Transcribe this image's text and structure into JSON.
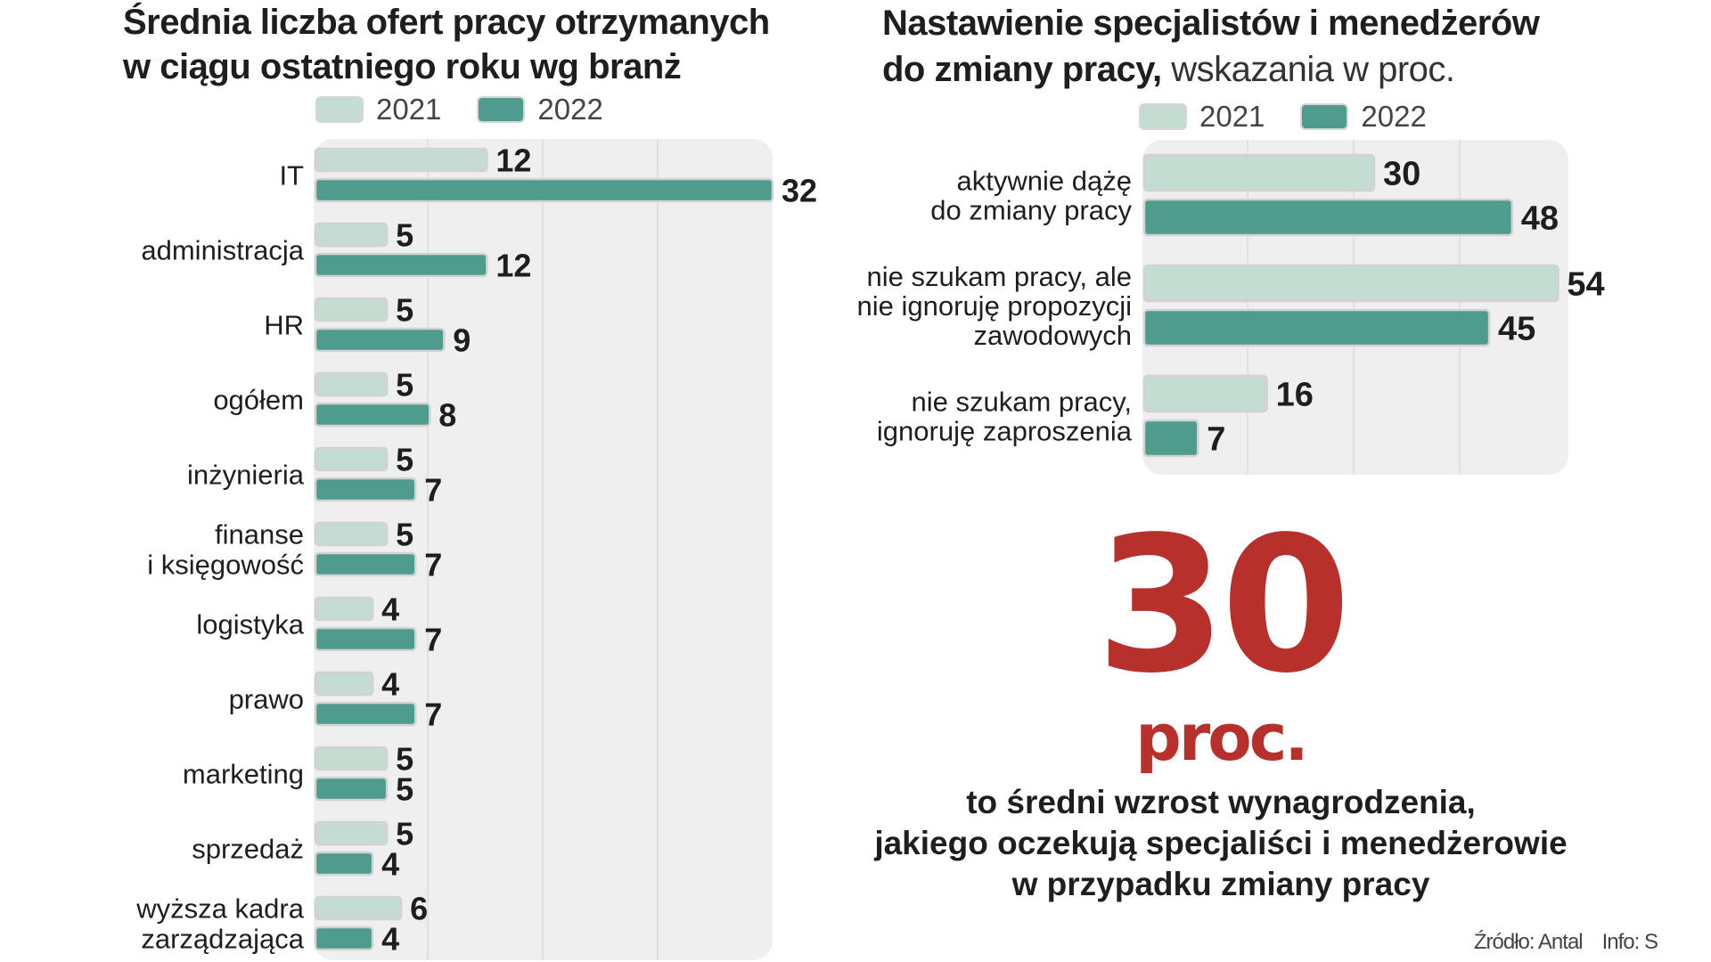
{
  "colors": {
    "y2021": "#c5dcd3",
    "y2022": "#4f9c8e",
    "panel": "#efefef",
    "accent": "#b8302b"
  },
  "chart_data": [
    {
      "type": "bar",
      "orientation": "horizontal",
      "title": "Średnia liczba ofert pracy otrzymanych w ciągu ostatniego roku wg branż",
      "title_lines": [
        "Średnia liczba ofert pracy otrzymanych",
        "w ciągu ostatniego roku wg branż"
      ],
      "categories": [
        [
          "IT"
        ],
        [
          "administracja"
        ],
        [
          "HR"
        ],
        [
          "ogółem"
        ],
        [
          "inżynieria"
        ],
        [
          "finanse",
          "i księgowość"
        ],
        [
          "logistyka"
        ],
        [
          "prawo"
        ],
        [
          "marketing"
        ],
        [
          "sprzedaż"
        ],
        [
          "wyższa kadra",
          "zarządzająca"
        ]
      ],
      "series": [
        {
          "name": "2021",
          "values": [
            12,
            5,
            5,
            5,
            5,
            5,
            4,
            4,
            5,
            5,
            6
          ]
        },
        {
          "name": "2022",
          "values": [
            32,
            12,
            9,
            8,
            7,
            7,
            7,
            7,
            5,
            4,
            4
          ]
        }
      ],
      "xlim": [
        0,
        32
      ],
      "grid": true,
      "legend": "top"
    },
    {
      "type": "bar",
      "orientation": "horizontal",
      "title": "Nastawienie specjalistów i menedżerów do zmiany pracy,",
      "title_lines": [
        "Nastawienie specjalistów i menedżerów",
        "do zmiany pracy,"
      ],
      "subtitle": "wskazania w proc.",
      "categories": [
        [
          "aktywnie dążę",
          "do zmiany pracy"
        ],
        [
          "nie szukam pracy, ale",
          "nie ignoruję propozycji",
          "zawodowych"
        ],
        [
          "nie szukam pracy,",
          "ignoruję zaproszenia"
        ]
      ],
      "series": [
        {
          "name": "2021",
          "values": [
            30,
            54,
            16
          ]
        },
        {
          "name": "2022",
          "values": [
            48,
            45,
            7
          ]
        }
      ],
      "xlim": [
        0,
        54
      ],
      "grid": true,
      "legend": "top"
    }
  ],
  "highlight": {
    "number": "30",
    "unit": "proc.",
    "caption_lines": [
      "to średni wzrost wynagrodzenia,",
      "jakiego oczekują specjaliści i menedżerowie",
      "w przypadku zmiany pracy"
    ]
  },
  "footer": {
    "source": "Źródło: Antal",
    "info": "Info: S"
  }
}
